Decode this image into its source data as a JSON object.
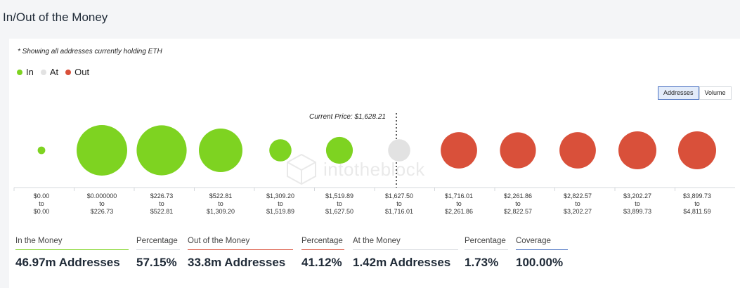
{
  "header": {
    "title": "In/Out of the Money"
  },
  "note": "* Showing all addresses currently holding ETH",
  "legend": [
    {
      "label": "In",
      "color": "#7ed321"
    },
    {
      "label": "At",
      "color": "#e2e2e2"
    },
    {
      "label": "Out",
      "color": "#d9503a"
    }
  ],
  "toggle": {
    "addresses_label": "Addresses",
    "volume_label": "Volume",
    "active": "Addresses"
  },
  "current_price_label": "Current Price: $1,628.21",
  "watermark": "intotheblock",
  "chart_data": {
    "type": "bubble",
    "x_axis": "categorical price ranges",
    "current_price": 1628.21,
    "current_price_marker_after_index": 6,
    "categories": [
      {
        "from": "$0.00",
        "to": "$0.00",
        "status": "in",
        "relative_size": 0.15
      },
      {
        "from": "$0.000000",
        "to": "$226.73",
        "status": "in",
        "relative_size": 1.0
      },
      {
        "from": "$226.73",
        "to": "$522.81",
        "status": "in",
        "relative_size": 0.99
      },
      {
        "from": "$522.81",
        "to": "$1,309.20",
        "status": "in",
        "relative_size": 0.86
      },
      {
        "from": "$1,309.20",
        "to": "$1,519.89",
        "status": "in",
        "relative_size": 0.44
      },
      {
        "from": "$1,519.89",
        "to": "$1,627.50",
        "status": "in",
        "relative_size": 0.53
      },
      {
        "from": "$1,627.50",
        "to": "$1,716.01",
        "status": "at",
        "relative_size": 0.44
      },
      {
        "from": "$1,716.01",
        "to": "$2,261.86",
        "status": "out",
        "relative_size": 0.72
      },
      {
        "from": "$2,261.86",
        "to": "$2,822.57",
        "status": "out",
        "relative_size": 0.71
      },
      {
        "from": "$2,822.57",
        "to": "$3,202.27",
        "status": "out",
        "relative_size": 0.72
      },
      {
        "from": "$3,202.27",
        "to": "$3,899.73",
        "status": "out",
        "relative_size": 0.75
      },
      {
        "from": "$3,899.73",
        "to": "$4,811.59",
        "status": "out",
        "relative_size": 0.75
      }
    ],
    "to_word": "to",
    "colors": {
      "in": "#7ed321",
      "at": "#e2e2e2",
      "out": "#d9503a"
    }
  },
  "stats": [
    {
      "label": "In the Money",
      "value": "46.97m Addresses",
      "line_color": "#7ed321"
    },
    {
      "label": "Percentage",
      "value": "57.15%",
      "line_color": "#d8dbdf"
    },
    {
      "label": "Out of the Money",
      "value": "33.8m Addresses",
      "line_color": "#d9503a"
    },
    {
      "label": "Percentage",
      "value": "41.12%",
      "line_color": "#d9503a"
    },
    {
      "label": "At the Money",
      "value": "1.42m Addresses",
      "line_color": "#d8dbdf"
    },
    {
      "label": "Percentage",
      "value": "1.73%",
      "line_color": "#d8dbdf"
    },
    {
      "label": "Coverage",
      "value": "100.00%",
      "line_color": "#4a72c2"
    }
  ]
}
